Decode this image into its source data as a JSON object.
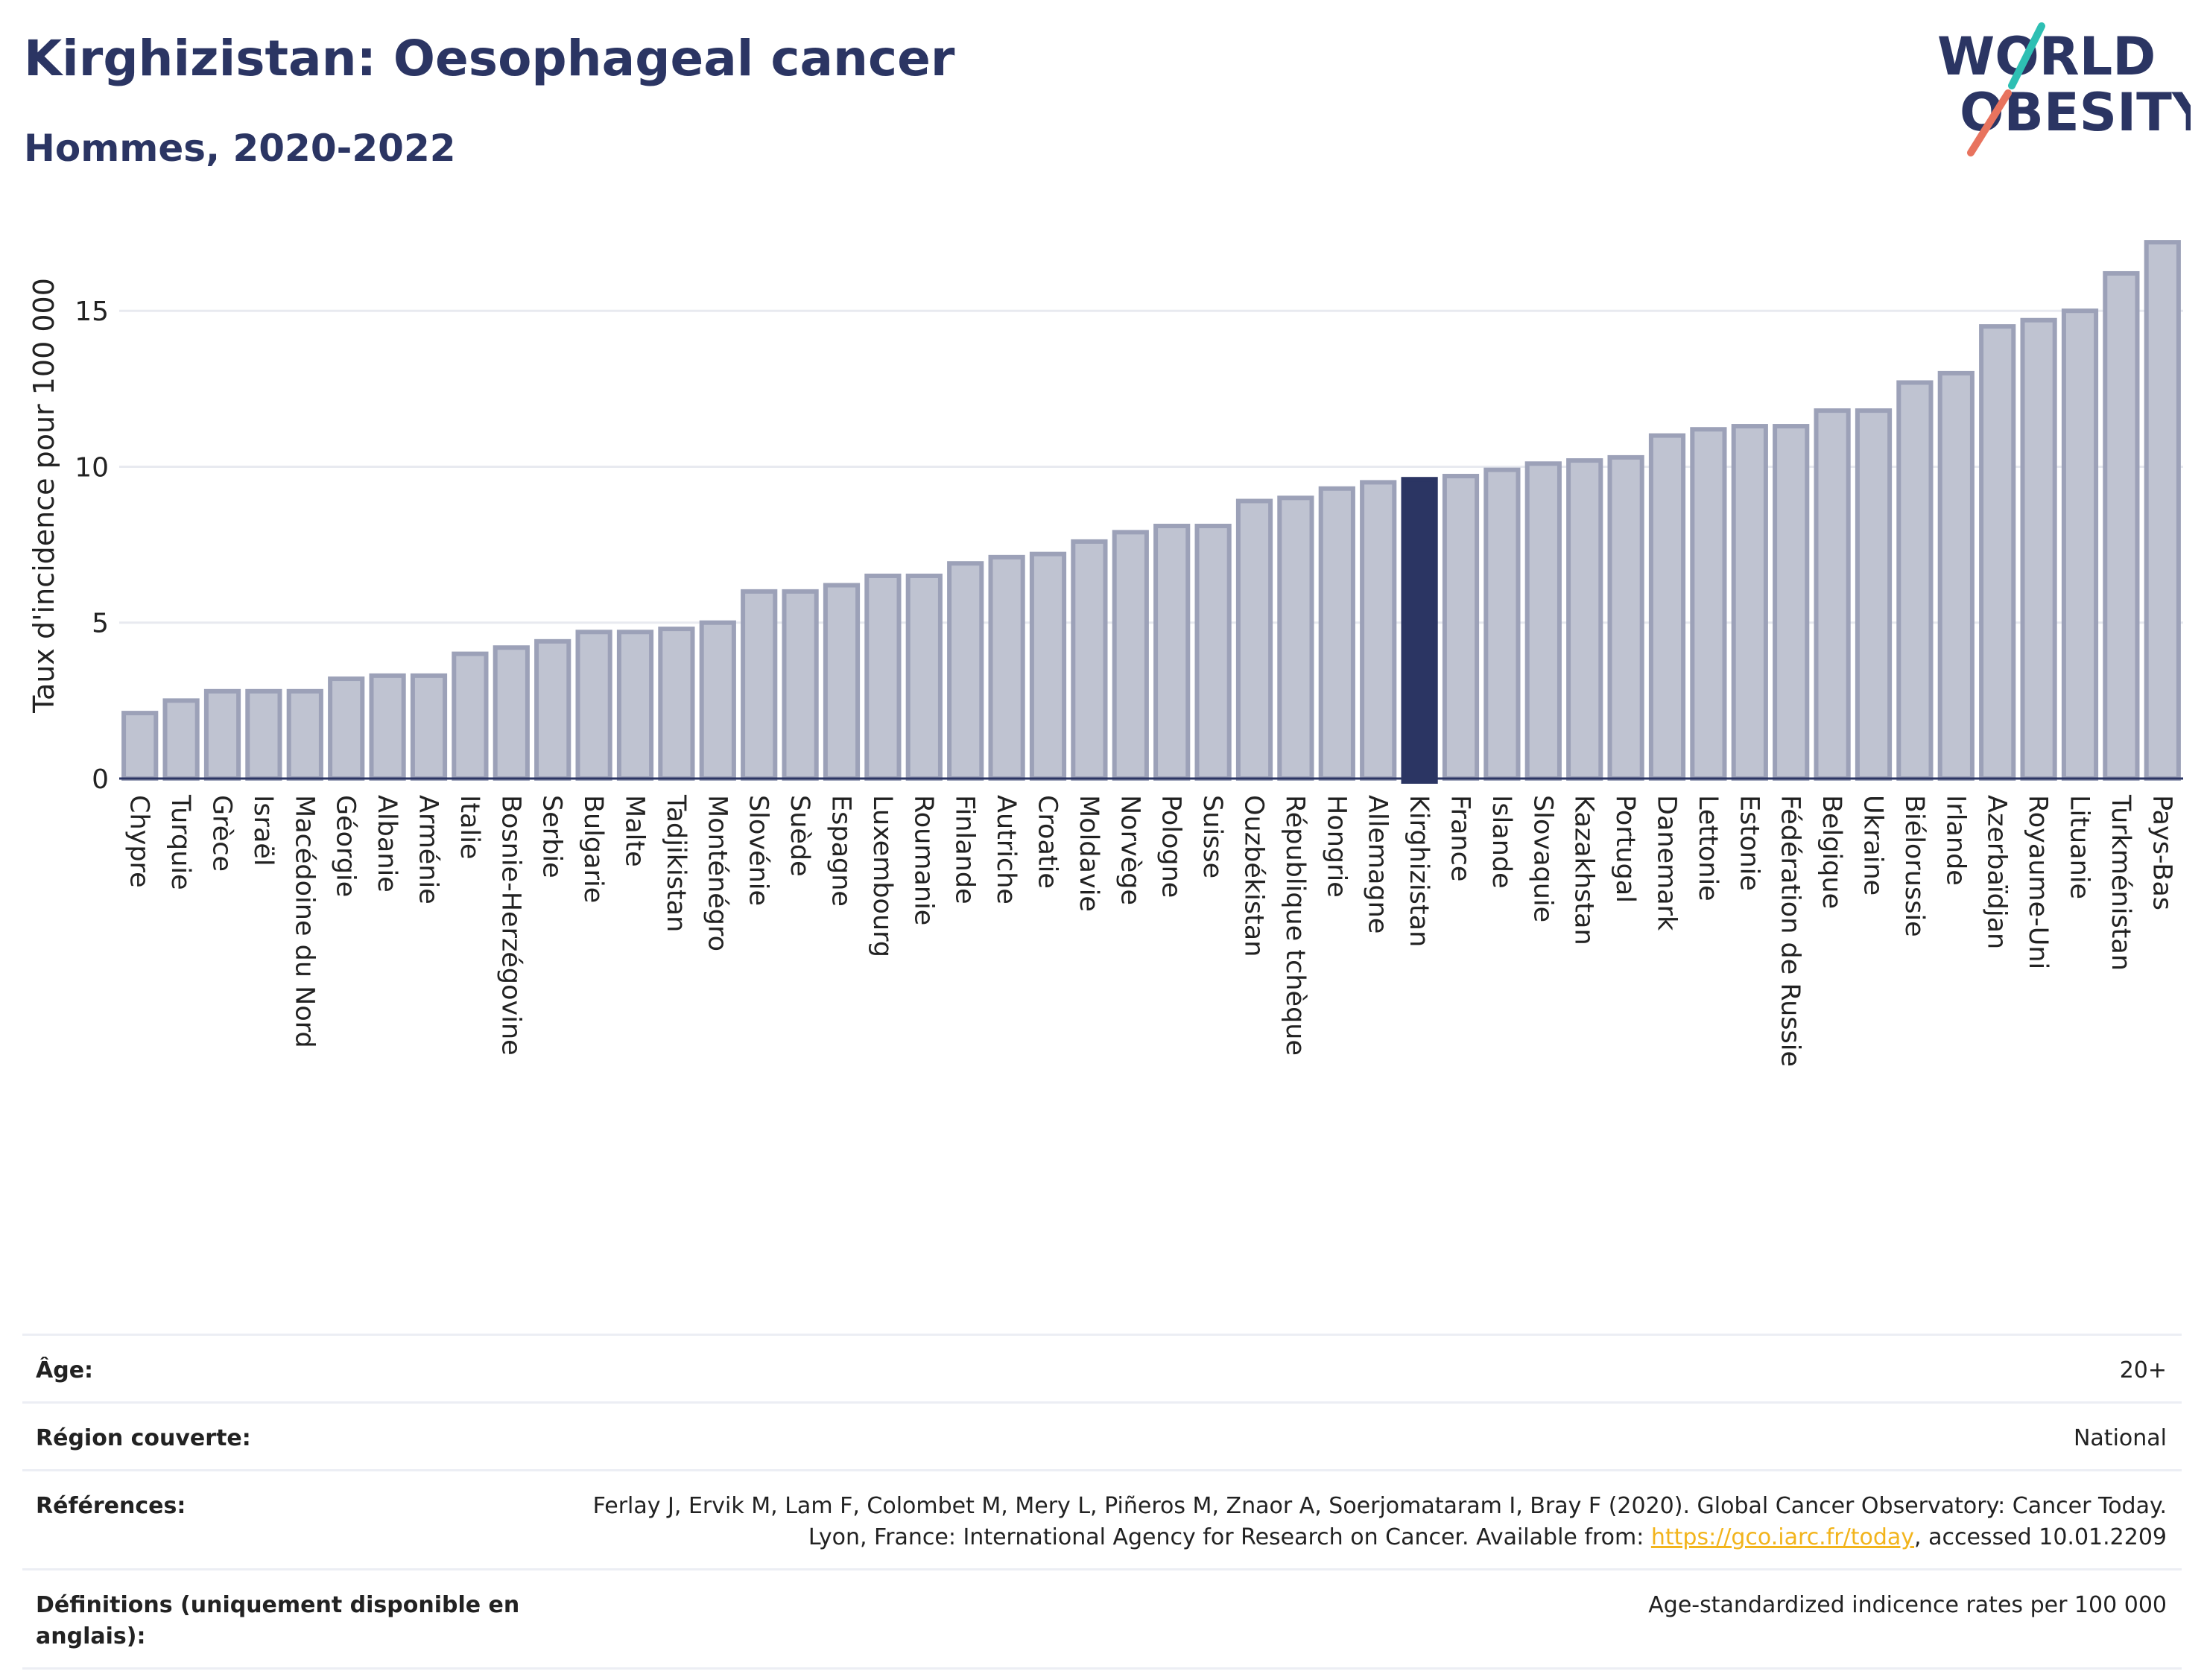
{
  "header": {
    "title": "Kirghizistan: Oesophageal cancer",
    "subtitle": "Hommes, 2020-2022",
    "logo_line1": "WORLD",
    "logo_line2": "OBESITY"
  },
  "colors": {
    "bar": "#bfc3d1",
    "bar_border": "#9ca1b8",
    "highlight": "#2b3563",
    "grid": "#e8eaf0",
    "text": "#2b3563",
    "logo_teal": "#2ebfb3",
    "logo_coral": "#e8735e"
  },
  "chart_data": {
    "type": "bar",
    "title": "Kirghizistan: Oesophageal cancer",
    "subtitle": "Hommes, 2020-2022",
    "ylabel": "Taux d'incidence pour 100 000",
    "ylim": [
      0,
      17.8
    ],
    "yticks": [
      0,
      5,
      10,
      15
    ],
    "grid": true,
    "highlight": "Kirghizistan",
    "categories": [
      "Chypre",
      "Turquie",
      "Grèce",
      "Israël",
      "Macédoine du Nord",
      "Géorgie",
      "Albanie",
      "Arménie",
      "Italie",
      "Bosnie-Herzégovine",
      "Serbie",
      "Bulgarie",
      "Malte",
      "Tadjikistan",
      "Monténégro",
      "Slovénie",
      "Suède",
      "Espagne",
      "Luxembourg",
      "Roumanie",
      "Finlande",
      "Autriche",
      "Croatie",
      "Moldavie",
      "Norvège",
      "Pologne",
      "Suisse",
      "Ouzbékistan",
      "République tchèque",
      "Hongrie",
      "Allemagne",
      "Kirghizistan",
      "France",
      "Islande",
      "Slovaquie",
      "Kazakhstan",
      "Portugal",
      "Danemark",
      "Lettonie",
      "Estonie",
      "Fédération de Russie",
      "Belgique",
      "Ukraine",
      "Biélorussie",
      "Irlande",
      "Azerbaïdjan",
      "Royaume-Uni",
      "Lituanie",
      "Turkménistan",
      "Pays-Bas"
    ],
    "values": [
      2.1,
      2.5,
      2.8,
      2.8,
      2.8,
      3.2,
      3.3,
      3.3,
      4.0,
      4.2,
      4.4,
      4.7,
      4.7,
      4.8,
      5.0,
      6.0,
      6.0,
      6.2,
      6.5,
      6.5,
      6.9,
      7.1,
      7.2,
      7.6,
      7.9,
      8.1,
      8.1,
      8.9,
      9.0,
      9.3,
      9.5,
      9.6,
      9.7,
      9.9,
      10.1,
      10.2,
      10.3,
      11.0,
      11.2,
      11.3,
      11.3,
      11.8,
      11.8,
      12.7,
      13.0,
      14.5,
      14.7,
      15.0,
      16.2,
      17.2
    ]
  },
  "info": {
    "age_label": "Âge:",
    "age_value": "20+",
    "region_label": "Région couverte:",
    "region_value": "National",
    "ref_label": "Références:",
    "ref_text_1": "Ferlay J, Ervik M, Lam F, Colombet M, Mery L, Piñeros M, Znaor A, Soerjomataram I, Bray F (2020). Global Cancer Observatory: Cancer Today. Lyon, France: International Agency for Research on Cancer. Available from: ",
    "ref_link": "https://gco.iarc.fr/today",
    "ref_text_2": ", accessed 10.01.2209",
    "def_label": "Définitions (uniquement disponible en anglais):",
    "def_value": "Age-standardized indicence rates per 100 000"
  }
}
